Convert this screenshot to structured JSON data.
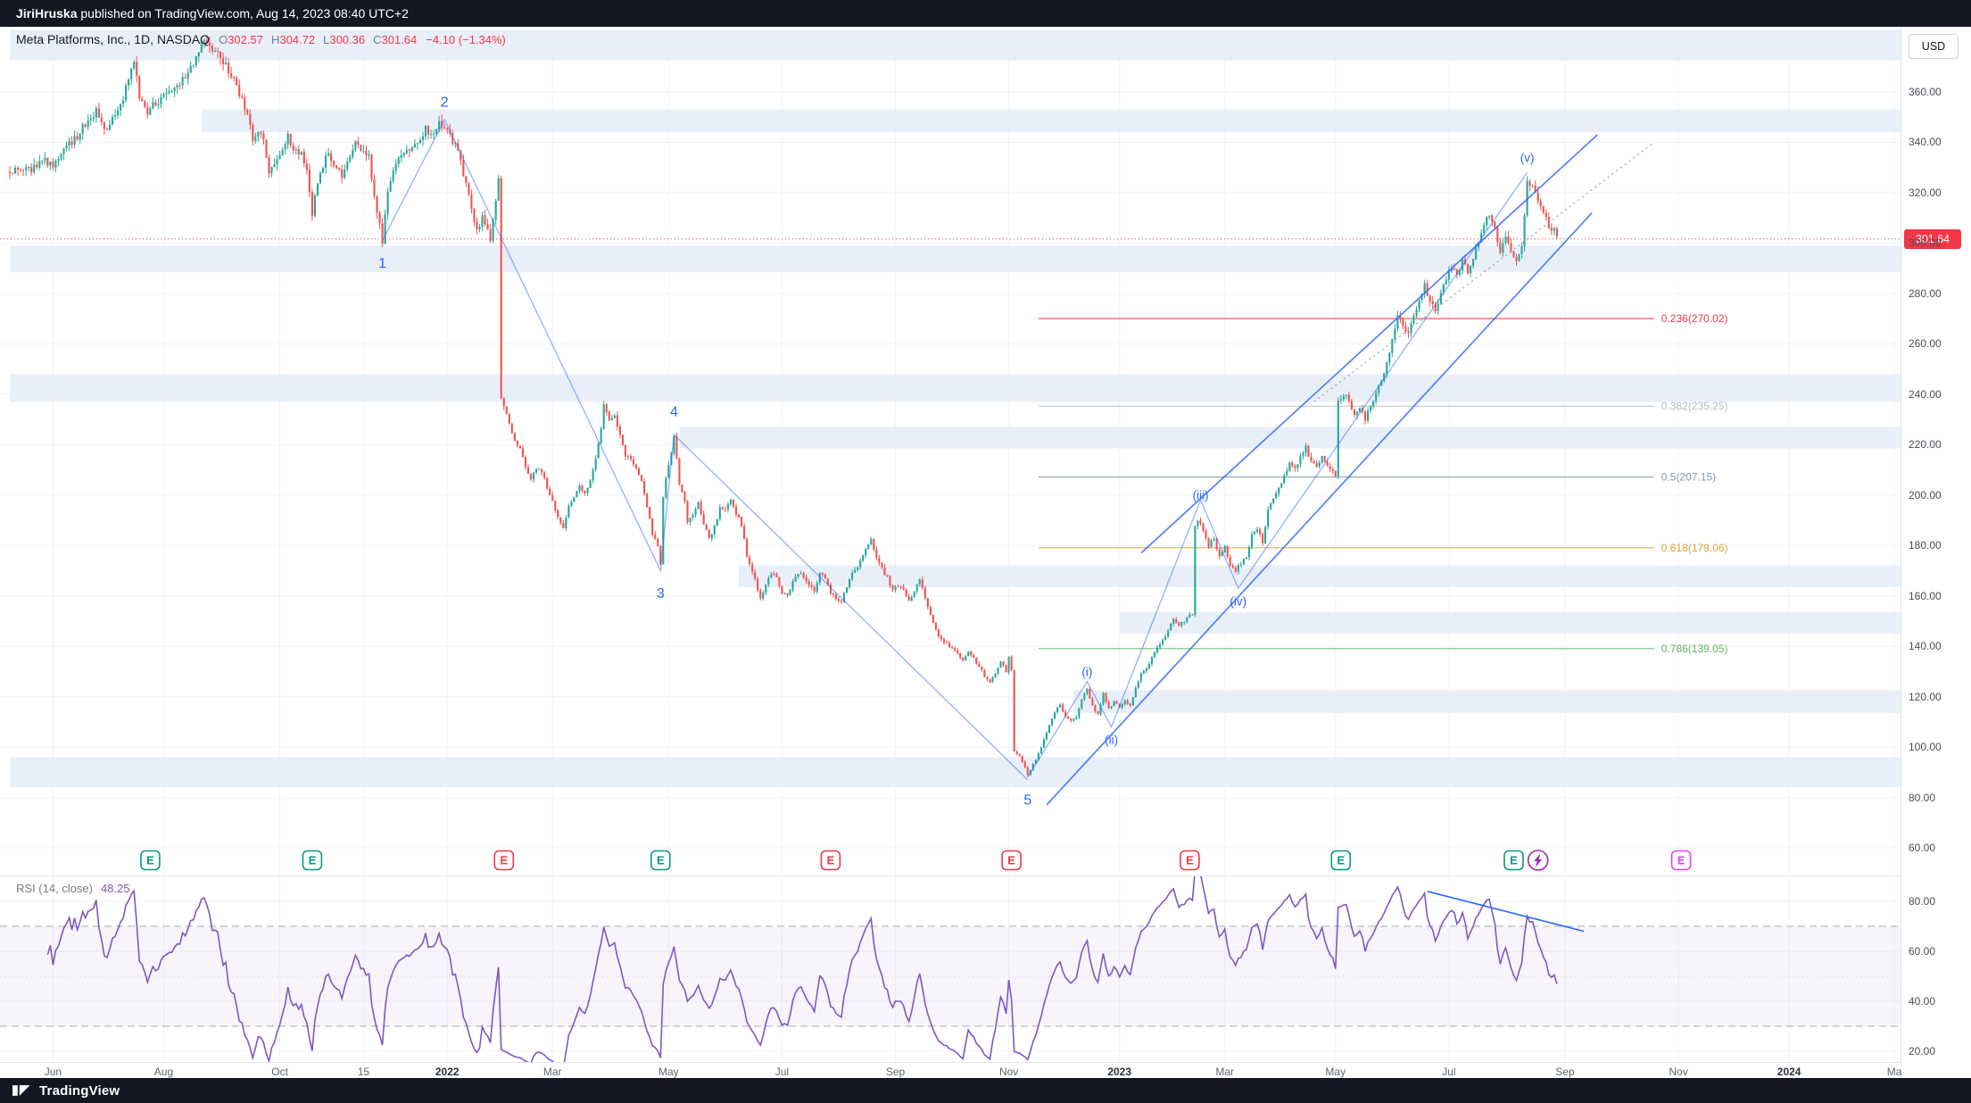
{
  "topbar": {
    "author": "JiriHruska",
    "text": " published on TradingView.com, Aug 14, 2023 08:40 UTC+2"
  },
  "footer": {
    "brand": "TradingView"
  },
  "header": {
    "symbol_title": "Meta Platforms, Inc., 1D, NASDAQ",
    "ohlc": [
      {
        "k": "O",
        "v": "302.57"
      },
      {
        "k": "H",
        "v": "304.72"
      },
      {
        "k": "L",
        "v": "300.36"
      },
      {
        "k": "C",
        "v": "301.64"
      }
    ],
    "change": "−4.10 (−1.34%)"
  },
  "price_scale": {
    "currency": "USD",
    "ticks": [
      360,
      340,
      320,
      300,
      280,
      260,
      240,
      220,
      200,
      180,
      160,
      140,
      120,
      100,
      80,
      60
    ],
    "last_price": "301.64"
  },
  "time_scale": {
    "labels": [
      {
        "label": "Jun",
        "t": 16
      },
      {
        "label": "Aug",
        "t": 57
      },
      {
        "label": "Oct",
        "t": 100
      },
      {
        "label": "15",
        "t": 131
      },
      {
        "label": "2022",
        "t": 162
      },
      {
        "label": "Mar",
        "t": 201
      },
      {
        "label": "May",
        "t": 244
      },
      {
        "label": "Jul",
        "t": 286
      },
      {
        "label": "Sep",
        "t": 328
      },
      {
        "label": "Nov",
        "t": 370
      },
      {
        "label": "2023",
        "t": 411
      },
      {
        "label": "Mar",
        "t": 450
      },
      {
        "label": "May",
        "t": 491
      },
      {
        "label": "Jul",
        "t": 533
      },
      {
        "label": "Sep",
        "t": 576
      },
      {
        "label": "Nov",
        "t": 618
      },
      {
        "label": "2024",
        "t": 659
      },
      {
        "label": "Ma",
        "t": 698
      }
    ]
  },
  "rsi": {
    "legend": "RSI (14, close)",
    "value": "48.25",
    "upper_band": 70,
    "lower_band": 30,
    "middle": 50,
    "ticks": [
      80,
      60,
      40,
      20
    ],
    "trendline": [
      525,
      84,
      583,
      68
    ]
  },
  "colors": {
    "up": "#26a69a",
    "down": "#ef5350",
    "wave": "#2962ff",
    "last": "#f23645",
    "zone": "#e9eff9",
    "grid": "#f0f3fa",
    "beat": "#089981",
    "miss": "#f23645",
    "upcoming": "#e040fb",
    "event": "#9c27b0",
    "rsi": "#7e57c2",
    "dotted": "#9aa0aa"
  },
  "chart_data": {
    "type": "candlestick",
    "title": "Meta Platforms, Inc., 1D, NASDAQ",
    "x_axis": "Time, daily bars (≈ Jun 2021 – Aug 14 2023, projected to Mar 2024)",
    "y_axis": "Price (USD)",
    "y_range": [
      55,
      390
    ],
    "bars": 574,
    "last_close": 301.64,
    "waypoints": [
      [
        8,
        329
      ],
      [
        12,
        333
      ],
      [
        16,
        331
      ],
      [
        20,
        337
      ],
      [
        24,
        341
      ],
      [
        28,
        347
      ],
      [
        32,
        352
      ],
      [
        35,
        344
      ],
      [
        39,
        351
      ],
      [
        42,
        357
      ],
      [
        46,
        373
      ],
      [
        48,
        358
      ],
      [
        51,
        351
      ],
      [
        54,
        356
      ],
      [
        58,
        359
      ],
      [
        62,
        363
      ],
      [
        66,
        367
      ],
      [
        69,
        373
      ],
      [
        72,
        381
      ],
      [
        74,
        378
      ],
      [
        77,
        375
      ],
      [
        80,
        370
      ],
      [
        83,
        364
      ],
      [
        86,
        357
      ],
      [
        88,
        350
      ],
      [
        90,
        341
      ],
      [
        92,
        344
      ],
      [
        94,
        341
      ],
      [
        96,
        327
      ],
      [
        98,
        331
      ],
      [
        101,
        337
      ],
      [
        103,
        342
      ],
      [
        105,
        338
      ],
      [
        108,
        335
      ],
      [
        110,
        329
      ],
      [
        112,
        312
      ],
      [
        114,
        324
      ],
      [
        116,
        331
      ],
      [
        118,
        336
      ],
      [
        121,
        330
      ],
      [
        123,
        327
      ],
      [
        126,
        333
      ],
      [
        128,
        340
      ],
      [
        131,
        336
      ],
      [
        133,
        334
      ],
      [
        135,
        318
      ],
      [
        137,
        308
      ],
      [
        138,
        301
      ],
      [
        140,
        320
      ],
      [
        142,
        329
      ],
      [
        145,
        335
      ],
      [
        148,
        338
      ],
      [
        151,
        341
      ],
      [
        154,
        345
      ],
      [
        157,
        343
      ],
      [
        159,
        348
      ],
      [
        161,
        347
      ],
      [
        163,
        343
      ],
      [
        165,
        339
      ],
      [
        167,
        333
      ],
      [
        169,
        323
      ],
      [
        171,
        313
      ],
      [
        173,
        305
      ],
      [
        175,
        310
      ],
      [
        177,
        305
      ],
      [
        178,
        301
      ],
      [
        179,
        308
      ],
      [
        180,
        318
      ],
      [
        181,
        325
      ],
      [
        182,
        238
      ],
      [
        183,
        236
      ],
      [
        185,
        228
      ],
      [
        187,
        222
      ],
      [
        189,
        218
      ],
      [
        191,
        212
      ],
      [
        193,
        206
      ],
      [
        195,
        211
      ],
      [
        197,
        209
      ],
      [
        199,
        203
      ],
      [
        201,
        197
      ],
      [
        203,
        192
      ],
      [
        205,
        187
      ],
      [
        207,
        195
      ],
      [
        209,
        199
      ],
      [
        211,
        204
      ],
      [
        213,
        201
      ],
      [
        215,
        206
      ],
      [
        217,
        215
      ],
      [
        219,
        227
      ],
      [
        220,
        235
      ],
      [
        222,
        229
      ],
      [
        224,
        231
      ],
      [
        226,
        224
      ],
      [
        228,
        216
      ],
      [
        230,
        214
      ],
      [
        232,
        211
      ],
      [
        234,
        206
      ],
      [
        236,
        196
      ],
      [
        238,
        185
      ],
      [
        240,
        180
      ],
      [
        241,
        172
      ],
      [
        242,
        200
      ],
      [
        243,
        206
      ],
      [
        244,
        211
      ],
      [
        246,
        223
      ],
      [
        248,
        205
      ],
      [
        250,
        197
      ],
      [
        251,
        189
      ],
      [
        253,
        192
      ],
      [
        255,
        198
      ],
      [
        257,
        188
      ],
      [
        259,
        183
      ],
      [
        261,
        187
      ],
      [
        263,
        195
      ],
      [
        265,
        194
      ],
      [
        267,
        198
      ],
      [
        269,
        193
      ],
      [
        271,
        188
      ],
      [
        273,
        176
      ],
      [
        275,
        169
      ],
      [
        277,
        163
      ],
      [
        278,
        159
      ],
      [
        280,
        164
      ],
      [
        282,
        169
      ],
      [
        284,
        167
      ],
      [
        286,
        161
      ],
      [
        288,
        160
      ],
      [
        290,
        165
      ],
      [
        292,
        169
      ],
      [
        294,
        168
      ],
      [
        296,
        164
      ],
      [
        298,
        162
      ],
      [
        300,
        169
      ],
      [
        302,
        167
      ],
      [
        304,
        161
      ],
      [
        306,
        159
      ],
      [
        308,
        158
      ],
      [
        310,
        164
      ],
      [
        312,
        169
      ],
      [
        314,
        171
      ],
      [
        316,
        176
      ],
      [
        318,
        181
      ],
      [
        319,
        183
      ],
      [
        321,
        175
      ],
      [
        323,
        171
      ],
      [
        325,
        167
      ],
      [
        327,
        162
      ],
      [
        329,
        164
      ],
      [
        331,
        163
      ],
      [
        333,
        158
      ],
      [
        335,
        162
      ],
      [
        337,
        167
      ],
      [
        339,
        159
      ],
      [
        341,
        152
      ],
      [
        343,
        146
      ],
      [
        345,
        143
      ],
      [
        347,
        141
      ],
      [
        349,
        139
      ],
      [
        351,
        137
      ],
      [
        353,
        134
      ],
      [
        355,
        138
      ],
      [
        357,
        135
      ],
      [
        359,
        132
      ],
      [
        361,
        128
      ],
      [
        363,
        126
      ],
      [
        365,
        129
      ],
      [
        367,
        134
      ],
      [
        369,
        130
      ],
      [
        370,
        136
      ],
      [
        371,
        130
      ],
      [
        372,
        98
      ],
      [
        374,
        96
      ],
      [
        376,
        92
      ],
      [
        377,
        89
      ],
      [
        379,
        93
      ],
      [
        381,
        97
      ],
      [
        383,
        103
      ],
      [
        385,
        109
      ],
      [
        387,
        114
      ],
      [
        389,
        117
      ],
      [
        391,
        112
      ],
      [
        393,
        110
      ],
      [
        395,
        112
      ],
      [
        397,
        119
      ],
      [
        399,
        123
      ],
      [
        401,
        116
      ],
      [
        403,
        113
      ],
      [
        405,
        121
      ],
      [
        407,
        115
      ],
      [
        409,
        118
      ],
      [
        411,
        116
      ],
      [
        413,
        118
      ],
      [
        415,
        117
      ],
      [
        417,
        123
      ],
      [
        419,
        129
      ],
      [
        421,
        131
      ],
      [
        423,
        136
      ],
      [
        425,
        139
      ],
      [
        427,
        142
      ],
      [
        429,
        146
      ],
      [
        431,
        151
      ],
      [
        433,
        148
      ],
      [
        435,
        150
      ],
      [
        437,
        152
      ],
      [
        438,
        152
      ],
      [
        439,
        188
      ],
      [
        440,
        190
      ],
      [
        442,
        186
      ],
      [
        444,
        180
      ],
      [
        446,
        183
      ],
      [
        448,
        175
      ],
      [
        450,
        180
      ],
      [
        452,
        172
      ],
      [
        454,
        170
      ],
      [
        456,
        173
      ],
      [
        458,
        176
      ],
      [
        460,
        184
      ],
      [
        462,
        187
      ],
      [
        464,
        181
      ],
      [
        466,
        194
      ],
      [
        468,
        199
      ],
      [
        470,
        203
      ],
      [
        472,
        208
      ],
      [
        474,
        212
      ],
      [
        476,
        211
      ],
      [
        478,
        215
      ],
      [
        480,
        219
      ],
      [
        482,
        213
      ],
      [
        484,
        211
      ],
      [
        486,
        216
      ],
      [
        488,
        212
      ],
      [
        490,
        209
      ],
      [
        491,
        208
      ],
      [
        492,
        237
      ],
      [
        494,
        240
      ],
      [
        496,
        238
      ],
      [
        498,
        232
      ],
      [
        500,
        234
      ],
      [
        502,
        230
      ],
      [
        504,
        236
      ],
      [
        506,
        240
      ],
      [
        508,
        246
      ],
      [
        510,
        252
      ],
      [
        512,
        262
      ],
      [
        514,
        271
      ],
      [
        516,
        267
      ],
      [
        518,
        264
      ],
      [
        520,
        270
      ],
      [
        522,
        277
      ],
      [
        524,
        283
      ],
      [
        526,
        277
      ],
      [
        528,
        274
      ],
      [
        530,
        280
      ],
      [
        532,
        286
      ],
      [
        534,
        290
      ],
      [
        536,
        287
      ],
      [
        538,
        293
      ],
      [
        540,
        289
      ],
      [
        542,
        294
      ],
      [
        544,
        300
      ],
      [
        546,
        308
      ],
      [
        548,
        312
      ],
      [
        550,
        305
      ],
      [
        552,
        297
      ],
      [
        554,
        302
      ],
      [
        556,
        297
      ],
      [
        558,
        294
      ],
      [
        560,
        298
      ],
      [
        561,
        310
      ],
      [
        562,
        325
      ],
      [
        564,
        322
      ],
      [
        566,
        316
      ],
      [
        568,
        312
      ],
      [
        570,
        306
      ],
      [
        571,
        305
      ],
      [
        572,
        306
      ],
      [
        573,
        302
      ]
    ],
    "zones": [
      {
        "from": 384.5,
        "to": 372.5,
        "t_start": 0
      },
      {
        "from": 353,
        "to": 344,
        "t_start": 71
      },
      {
        "from": 299,
        "to": 288.5,
        "t_start": 0
      },
      {
        "from": 248,
        "to": 237,
        "t_start": 0
      },
      {
        "from": 227,
        "to": 218.5,
        "t_start": 248
      },
      {
        "from": 172,
        "to": 163.5,
        "t_start": 270
      },
      {
        "from": 153.5,
        "to": 145,
        "t_start": 411
      },
      {
        "from": 122.5,
        "to": 113.5,
        "t_start": 394
      },
      {
        "from": 96,
        "to": 84,
        "t_start": 0
      }
    ],
    "fib_levels": [
      {
        "label": "0.236(270.02)",
        "price": 270.02,
        "color": "#f23645"
      },
      {
        "label": "0.382(235.25)",
        "price": 235.25,
        "color": "#b7bcc6"
      },
      {
        "label": "0.5(207.15)",
        "price": 207.15,
        "color": "#7f98b8"
      },
      {
        "label": "0.618(179.06)",
        "price": 179.06,
        "color": "#dba23c"
      },
      {
        "label": "0.786(139.05)",
        "price": 139.05,
        "color": "#5fb760"
      }
    ],
    "fib_span": [
      381,
      609
    ],
    "wave_labels": {
      "primary": [
        {
          "text": "1",
          "t": 138,
          "price": 292
        },
        {
          "text": "2",
          "t": 161,
          "price": 356
        },
        {
          "text": "3",
          "t": 241,
          "price": 161
        },
        {
          "text": "4",
          "t": 246,
          "price": 233
        },
        {
          "text": "5",
          "t": 377,
          "price": 79
        }
      ],
      "sub": [
        {
          "text": "(i)",
          "t": 399,
          "price": 130
        },
        {
          "text": "(ii)",
          "t": 408,
          "price": 103
        },
        {
          "text": "(iii)",
          "t": 441,
          "price": 200
        },
        {
          "text": "(iv)",
          "t": 455,
          "price": 158
        },
        {
          "text": "(v)",
          "t": 562,
          "price": 334
        }
      ]
    },
    "trendlines": {
      "impulse_path": [
        [
          138,
          301
        ],
        [
          161,
          349
        ],
        [
          241,
          170
        ],
        [
          246,
          224
        ],
        [
          377,
          87
        ]
      ],
      "recovery_path": [
        [
          377,
          88
        ],
        [
          399,
          126
        ],
        [
          408,
          108
        ],
        [
          441,
          198
        ],
        [
          455,
          163
        ],
        [
          562,
          328
        ]
      ],
      "channel_lines": [
        [
          384,
          77,
          586,
          312
        ],
        [
          419,
          177,
          588,
          343
        ]
      ],
      "projection_dotted": [
        483,
        237,
        609,
        340
      ]
    },
    "earnings_markers": [
      {
        "t": 52,
        "kind": "beat"
      },
      {
        "t": 112,
        "kind": "beat"
      },
      {
        "t": 183,
        "kind": "miss"
      },
      {
        "t": 241,
        "kind": "beat"
      },
      {
        "t": 304,
        "kind": "miss"
      },
      {
        "t": 371,
        "kind": "miss"
      },
      {
        "t": 437,
        "kind": "miss"
      },
      {
        "t": 493,
        "kind": "beat"
      },
      {
        "t": 557,
        "kind": "beat"
      },
      {
        "t": 566,
        "kind": "event"
      },
      {
        "t": 619,
        "kind": "upcoming"
      }
    ]
  }
}
